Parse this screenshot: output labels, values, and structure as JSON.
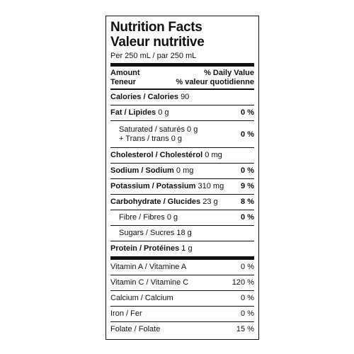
{
  "title_en": "Nutrition Facts",
  "title_fr": "Valeur nutritive",
  "serving": "Per 250 mL / par 250 mL",
  "header": {
    "amount": "Amount",
    "teneur": "Teneur",
    "dv": "% Daily Value",
    "dv_fr": "% valeur quotidienne"
  },
  "calories": {
    "label": "Calories / Calories",
    "value": "90"
  },
  "fat": {
    "label": "Fat / Lipides",
    "value": "0 g",
    "pct": "0 %"
  },
  "saturated": {
    "label": "Saturated / saturés",
    "value": "0 g",
    "label2": "+ Trans / trans",
    "value2": "0 g",
    "pct": "0 %"
  },
  "cholesterol": {
    "label": "Cholesterol / Cholestérol",
    "value": "0 mg"
  },
  "sodium": {
    "label": "Sodium / Sodium",
    "value": "0 mg",
    "pct": "0 %"
  },
  "potassium": {
    "label": "Potassium / Potassium",
    "value": "310 mg",
    "pct": "9 %"
  },
  "carbohydrate": {
    "label": "Carbohydrate / Glucides",
    "value": "23 g",
    "pct": "8 %"
  },
  "fibre": {
    "label": "Fibre / Fibres",
    "value": "0 g",
    "pct": "0 %"
  },
  "sugars": {
    "label": "Sugars / Sucres",
    "value": "18 g"
  },
  "protein": {
    "label": "Protein / Protéines",
    "value": "1 g"
  },
  "vitamins": [
    {
      "label": "Vitamin A / Vitamine A",
      "pct": "0 %"
    },
    {
      "label": "Vitamin C / Vitamine C",
      "pct": "120 %"
    },
    {
      "label": "Calcium / Calcium",
      "pct": "0 %"
    },
    {
      "label": "Iron / Fer",
      "pct": "0 %"
    },
    {
      "label": "Folate / Folate",
      "pct": "15 %"
    }
  ]
}
